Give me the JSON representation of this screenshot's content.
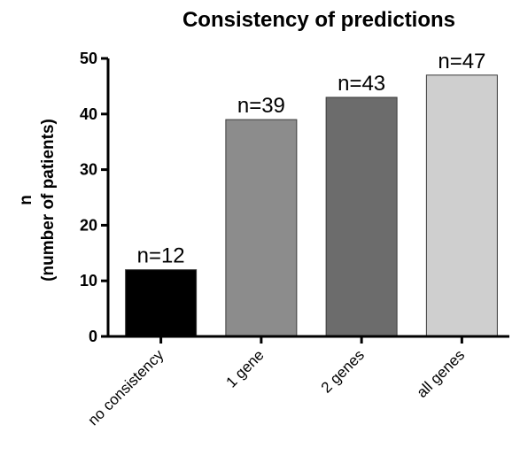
{
  "chart_data": {
    "type": "bar",
    "title": "Consistency of predictions",
    "ylabel_line1": "n",
    "ylabel_line2": "(number of patients)",
    "xlabel": "",
    "ylim": [
      0,
      50
    ],
    "yticks": [
      "0",
      "10",
      "20",
      "30",
      "40",
      "50"
    ],
    "categories": [
      "no consistency",
      "1 gene",
      "2 genes",
      "all genes"
    ],
    "values": [
      12,
      39,
      43,
      47
    ],
    "data_labels": [
      "n=12",
      "n=39",
      "n=43",
      "n=47"
    ],
    "colors": [
      "#000000",
      "#8c8c8c",
      "#6c6c6c",
      "#cfcfcf"
    ],
    "grid": false,
    "legend": "none"
  }
}
